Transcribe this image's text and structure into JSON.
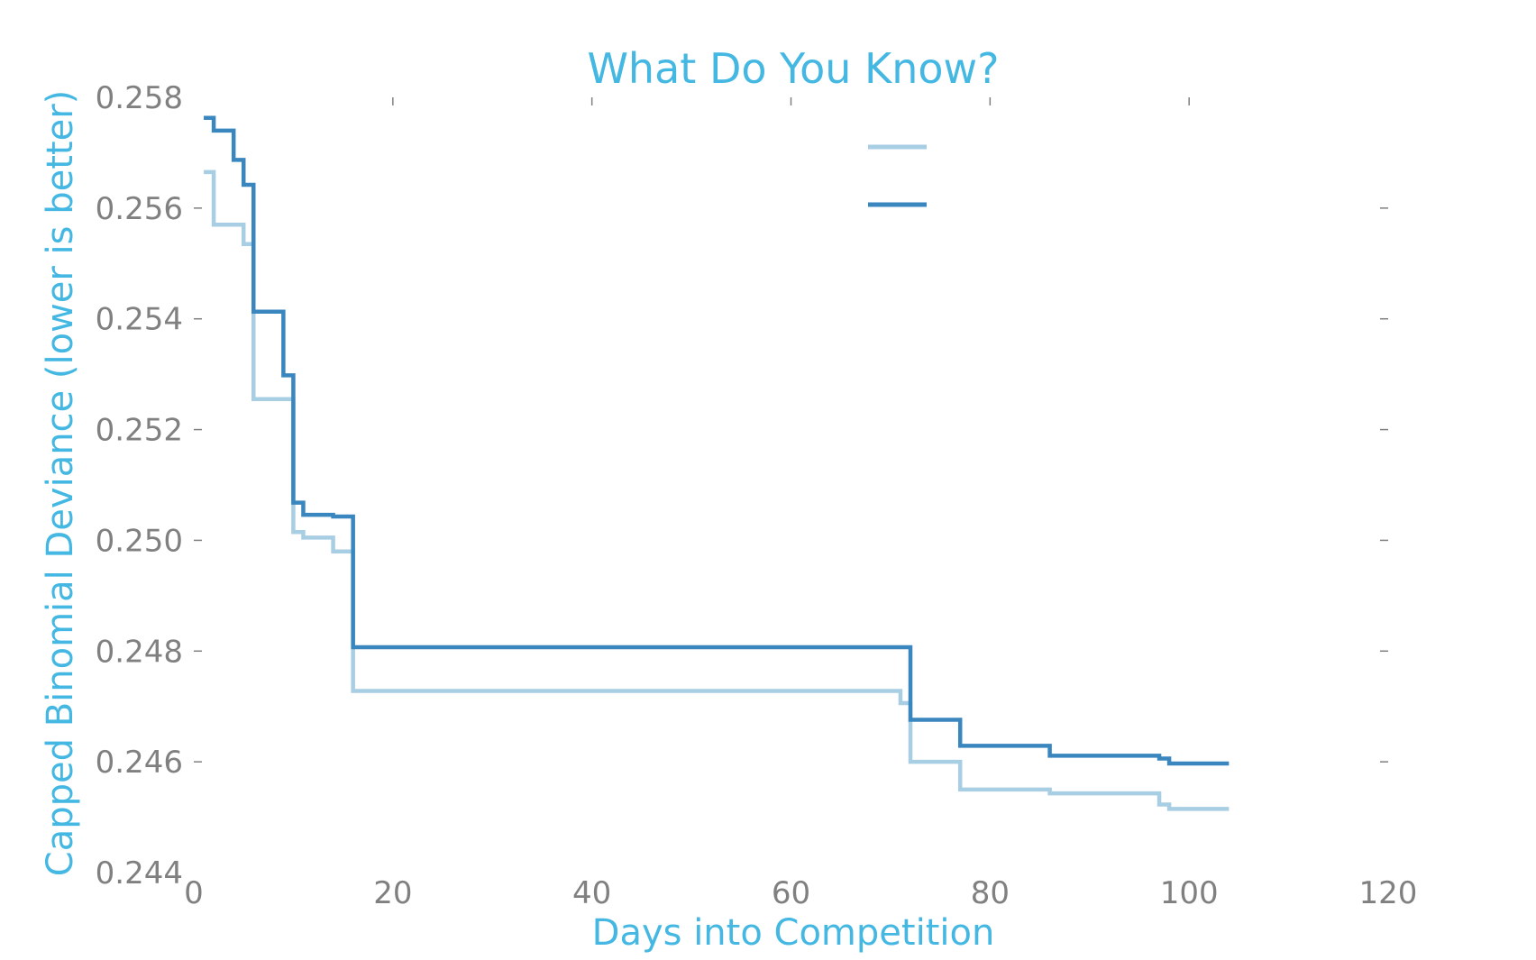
{
  "chart_data": {
    "type": "line",
    "step": true,
    "title": "What Do You Know?",
    "xlabel": "Days into Competition",
    "ylabel": "Capped Binomial Deviance (lower is better)",
    "xlim": [
      0,
      120
    ],
    "ylim": [
      0.244,
      0.258
    ],
    "xticks": [
      "0",
      "20",
      "40",
      "60",
      "80",
      "100",
      "120"
    ],
    "yticks": [
      "0.244",
      "0.246",
      "0.248",
      "0.250",
      "0.252",
      "0.254",
      "0.256",
      "0.258"
    ],
    "grid": false,
    "legend_position": "top-center",
    "title_color": "#44b8e2",
    "tick_color": "#808080",
    "series": [
      {
        "color": "#a8cee3",
        "points": [
          [
            1,
            0.25665
          ],
          [
            2,
            0.2557
          ],
          [
            5,
            0.25535
          ],
          [
            6,
            0.25255
          ],
          [
            10,
            0.25015
          ],
          [
            11,
            0.25005
          ],
          [
            14,
            0.2498
          ],
          [
            16,
            0.24728
          ],
          [
            71,
            0.24706
          ],
          [
            72,
            0.246
          ],
          [
            77,
            0.2455
          ],
          [
            86,
            0.24543
          ],
          [
            97,
            0.24523
          ],
          [
            98,
            0.24515
          ],
          [
            104,
            0.24515
          ]
        ]
      },
      {
        "color": "#3a86bf",
        "points": [
          [
            1,
            0.25763
          ],
          [
            2,
            0.2574
          ],
          [
            4,
            0.25687
          ],
          [
            5,
            0.25642
          ],
          [
            6,
            0.25413
          ],
          [
            9,
            0.25298
          ],
          [
            10,
            0.25068
          ],
          [
            11,
            0.25046
          ],
          [
            14,
            0.25043
          ],
          [
            16,
            0.24807
          ],
          [
            72,
            0.24676
          ],
          [
            77,
            0.24629
          ],
          [
            86,
            0.24611
          ],
          [
            97,
            0.24606
          ],
          [
            98,
            0.24597
          ],
          [
            104,
            0.24597
          ]
        ]
      }
    ]
  }
}
